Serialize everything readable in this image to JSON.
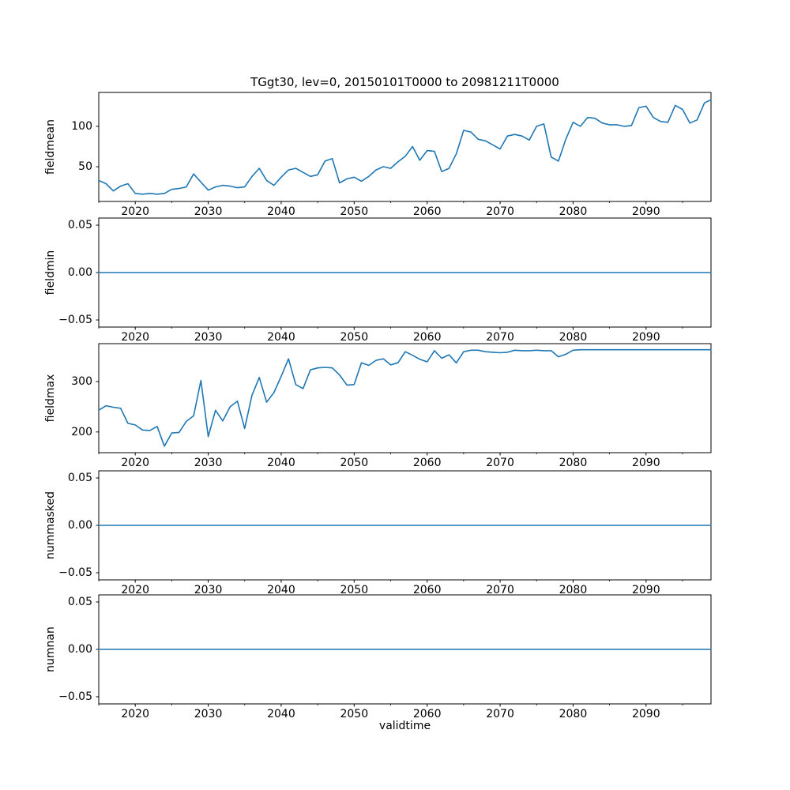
{
  "title": "TGgt30, lev=0, 20150101T0000 to 20981211T0000",
  "xlabel": "validtime",
  "line_color": "#1f77b4",
  "background_color": "#ffffff",
  "x_axis": {
    "lim": [
      2015,
      2098.9
    ],
    "major_ticks": [
      2020,
      2030,
      2040,
      2050,
      2060,
      2070,
      2080,
      2090
    ],
    "major_tick_labels": [
      "2020",
      "2030",
      "2040",
      "2050",
      "2060",
      "2070",
      "2080",
      "2090"
    ],
    "minor_ticks": [
      2015,
      2025,
      2035,
      2045,
      2055,
      2065,
      2075,
      2085,
      2095
    ]
  },
  "chart_data": [
    {
      "type": "line",
      "name": "fieldmean",
      "ylabel": "fieldmean",
      "ylim": [
        7,
        142
      ],
      "yticks": [
        50,
        100
      ],
      "ytick_labels": [
        "50",
        "100"
      ],
      "x": [
        2015,
        2016,
        2017,
        2018,
        2019,
        2020,
        2021,
        2022,
        2023,
        2024,
        2025,
        2026,
        2027,
        2028,
        2029,
        2030,
        2031,
        2032,
        2033,
        2034,
        2035,
        2036,
        2037,
        2038,
        2039,
        2040,
        2041,
        2042,
        2043,
        2044,
        2045,
        2046,
        2047,
        2048,
        2049,
        2050,
        2051,
        2052,
        2053,
        2054,
        2055,
        2056,
        2057,
        2058,
        2059,
        2060,
        2061,
        2062,
        2063,
        2064,
        2065,
        2066,
        2067,
        2068,
        2069,
        2070,
        2071,
        2072,
        2073,
        2074,
        2075,
        2076,
        2077,
        2078,
        2079,
        2080,
        2081,
        2082,
        2083,
        2084,
        2085,
        2086,
        2087,
        2088,
        2089,
        2090,
        2091,
        2092,
        2093,
        2094,
        2095,
        2096,
        2097,
        2098,
        2098.9
      ],
      "values": [
        33,
        29,
        20,
        26,
        29,
        17,
        16,
        17,
        16,
        17,
        22,
        23,
        25,
        41,
        31,
        21,
        25,
        27,
        26,
        24,
        25,
        38,
        48,
        33,
        27,
        37,
        46,
        48,
        43,
        38,
        40,
        57,
        60,
        30,
        35,
        37,
        32,
        38,
        46,
        50,
        48,
        56,
        63,
        75,
        58,
        70,
        69,
        44,
        48,
        66,
        95,
        93,
        84,
        82,
        77,
        72,
        88,
        90,
        88,
        83,
        100,
        103,
        62,
        57,
        84,
        105,
        100,
        111,
        110,
        104,
        102,
        102,
        100,
        101,
        123,
        125,
        111,
        106,
        105,
        126,
        121,
        104,
        108,
        129,
        133
      ]
    },
    {
      "type": "line",
      "name": "fieldmin",
      "ylabel": "fieldmin",
      "ylim": [
        -0.0575,
        0.0575
      ],
      "yticks": [
        -0.05,
        0.0,
        0.05
      ],
      "ytick_labels": [
        "−0.05",
        "0.00",
        "0.05"
      ],
      "constant_value": 0
    },
    {
      "type": "line",
      "name": "fieldmax",
      "ylabel": "fieldmax",
      "ylim": [
        159,
        375
      ],
      "yticks": [
        200,
        300
      ],
      "ytick_labels": [
        "200",
        "300"
      ],
      "x": [
        2015,
        2016,
        2017,
        2018,
        2019,
        2020,
        2021,
        2022,
        2023,
        2024,
        2025,
        2026,
        2027,
        2028,
        2029,
        2030,
        2031,
        2032,
        2033,
        2034,
        2035,
        2036,
        2037,
        2038,
        2039,
        2040,
        2041,
        2042,
        2043,
        2044,
        2045,
        2046,
        2047,
        2048,
        2049,
        2050,
        2051,
        2052,
        2053,
        2054,
        2055,
        2056,
        2057,
        2058,
        2059,
        2060,
        2061,
        2062,
        2063,
        2064,
        2065,
        2066,
        2067,
        2068,
        2069,
        2070,
        2071,
        2072,
        2073,
        2074,
        2075,
        2076,
        2077,
        2078,
        2079,
        2080,
        2081,
        2082,
        2083,
        2084,
        2085,
        2086,
        2087,
        2088,
        2089,
        2090,
        2091,
        2092,
        2093,
        2094,
        2095,
        2096,
        2097,
        2098,
        2098.9
      ],
      "values": [
        243,
        252,
        249,
        247,
        217,
        214,
        204,
        203,
        211,
        172,
        198,
        199,
        221,
        232,
        302,
        191,
        243,
        222,
        250,
        261,
        207,
        273,
        308,
        259,
        278,
        310,
        345,
        294,
        286,
        323,
        327,
        328,
        327,
        313,
        293,
        294,
        337,
        332,
        342,
        345,
        333,
        337,
        359,
        352,
        344,
        339,
        361,
        346,
        353,
        337,
        359,
        362,
        362,
        359,
        358,
        357,
        358,
        362,
        361,
        361,
        362,
        361,
        361,
        349,
        354,
        362,
        363,
        363,
        363,
        363,
        363,
        363,
        363,
        363,
        363,
        363,
        363,
        363,
        363,
        363,
        363,
        363,
        363,
        363,
        363
      ]
    },
    {
      "type": "line",
      "name": "nummasked",
      "ylabel": "nummasked",
      "ylim": [
        -0.0575,
        0.0575
      ],
      "yticks": [
        -0.05,
        0.0,
        0.05
      ],
      "ytick_labels": [
        "−0.05",
        "0.00",
        "0.05"
      ],
      "constant_value": 0
    },
    {
      "type": "line",
      "name": "numnan",
      "ylabel": "numnan",
      "ylim": [
        -0.0575,
        0.0575
      ],
      "yticks": [
        -0.05,
        0.0,
        0.05
      ],
      "ytick_labels": [
        "−0.05",
        "0.00",
        "0.05"
      ],
      "constant_value": 0
    }
  ]
}
